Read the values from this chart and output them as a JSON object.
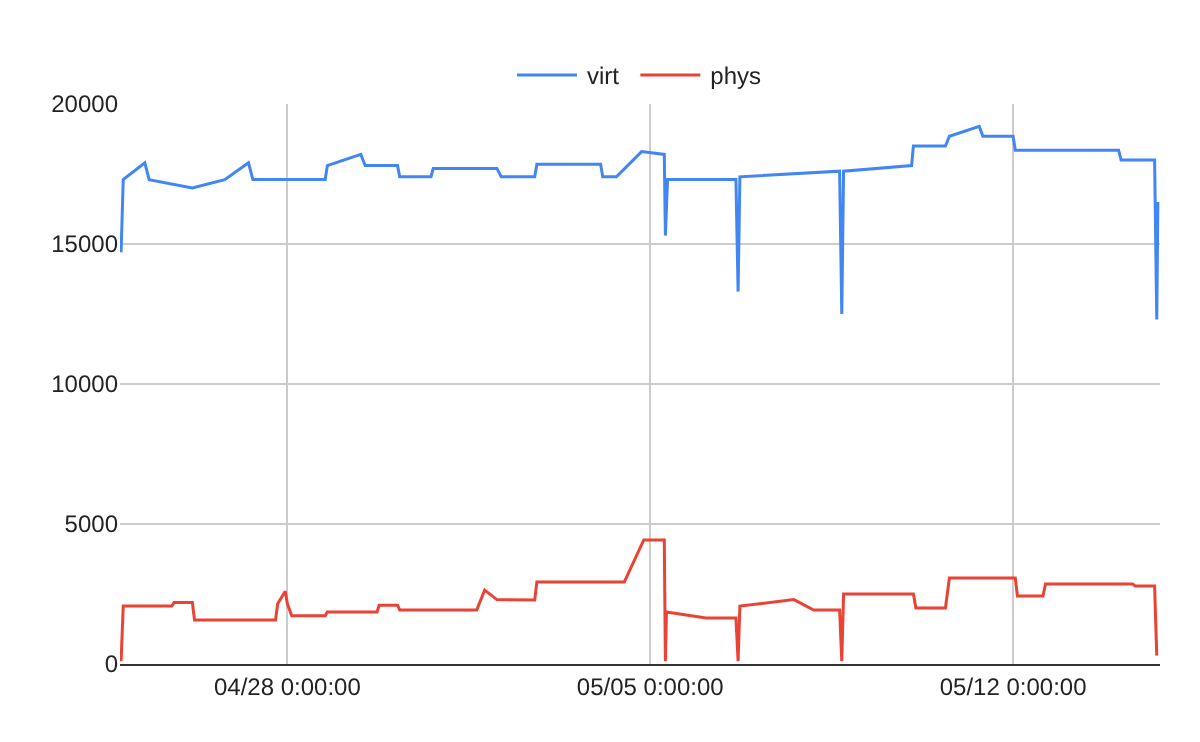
{
  "chart_data": {
    "type": "line",
    "legend": "top",
    "grid": true,
    "xlim": [
      "--04-24T18:30",
      "--05-14T20:00"
    ],
    "xticks": [
      {
        "value": "--04-28T00:00",
        "label": "04/28 0:00:00"
      },
      {
        "value": "--05-05T00:00",
        "label": "05/05 0:00:00"
      },
      {
        "value": "--05-12T00:00",
        "label": "05/12 0:00:00"
      }
    ],
    "ylim": [
      0,
      20000
    ],
    "yticks": [
      0,
      5000,
      10000,
      15000,
      20000
    ],
    "series": [
      {
        "name": "virt",
        "color": "#4285f4",
        "x": [
          "--04-24T19:00",
          "--04-24T20:00",
          "--04-25T06:00",
          "--04-25T08:00",
          "--04-26T04:00",
          "--04-26T19:00",
          "--04-27T06:00",
          "--04-27T08:00",
          "--04-28T02:00",
          "--04-28T17:30",
          "--04-28T18:30",
          "--04-29T10:00",
          "--04-29T12:00",
          "--04-30T03:00",
          "--04-30T04:00",
          "--04-30T18:30",
          "--04-30T19:30",
          "--05-02T01:00",
          "--05-02T03:00",
          "--05-02T18:30",
          "--05-02T19:30",
          "--05-04T01:00",
          "--05-04T02:00",
          "--05-04T08:20",
          "--05-04T20:00",
          "--05-05T06:30",
          "--05-05T07:00",
          "--05-05T08:00",
          "--05-06T15:40",
          "--05-06T16:40",
          "--05-06T17:30",
          "--05-08T15:40",
          "--05-08T16:40",
          "--05-08T17:30",
          "--05-10T01:00",
          "--05-10T01:50",
          "--05-10T16:40",
          "--05-10T18:30",
          "--05-11T08:20",
          "--05-11T10:00",
          "--05-12T00:00",
          "--05-12T01:00",
          "--05-14T00:50",
          "--05-14T02:00",
          "--05-14T17:30",
          "--05-14T18:30",
          "--05-14T19:00"
        ],
        "values": [
          14700,
          17300,
          17900,
          17300,
          17000,
          17300,
          17900,
          17300,
          17300,
          17300,
          17800,
          18200,
          17800,
          17800,
          17400,
          17400,
          17700,
          17700,
          17400,
          17400,
          17850,
          17850,
          17400,
          17400,
          18300,
          18200,
          15300,
          17300,
          17300,
          13300,
          17400,
          17600,
          12500,
          17600,
          17800,
          18500,
          18500,
          18850,
          19200,
          18850,
          18850,
          18350,
          18350,
          18000,
          18000,
          12300,
          16500
        ]
      },
      {
        "name": "phys",
        "color": "#ea4335",
        "x": [
          "--04-24T19:00",
          "--04-24T20:00",
          "--04-25T18:30",
          "--04-25T19:30",
          "--04-26T04:00",
          "--04-26T05:00",
          "--04-27T18:30",
          "--04-27T19:30",
          "--04-27T23:00",
          "--04-28T00:00",
          "--04-28T02:00",
          "--04-28T17:30",
          "--04-28T18:30",
          "--04-29T17:30",
          "--04-29T18:30",
          "--04-30T03:00",
          "--04-30T04:00",
          "--05-01T15:40",
          "--05-01T19:20",
          "--05-02T01:00",
          "--05-02T18:30",
          "--05-02T19:30",
          "--05-04T12:00",
          "--05-04T21:00",
          "--05-05T06:30",
          "--05-05T07:00",
          "--05-05T07:30",
          "--05-06T01:50",
          "--05-06T15:40",
          "--05-06T16:40",
          "--05-06T17:30",
          "--05-07T18:30",
          "--05-08T03:40",
          "--05-08T15:40",
          "--05-08T16:40",
          "--05-08T17:30",
          "--05-10T01:50",
          "--05-10T03:00",
          "--05-10T16:40",
          "--05-10T18:30",
          "--05-12T01:00",
          "--05-12T02:00",
          "--05-12T13:50",
          "--05-12T15:00",
          "--05-14T07:20",
          "--05-14T08:30",
          "--05-14T17:30",
          "--05-14T18:30"
        ],
        "values": [
          100,
          2070,
          2070,
          2200,
          2200,
          1570,
          1570,
          2150,
          2600,
          2150,
          1720,
          1720,
          1860,
          1860,
          2100,
          2100,
          1930,
          1930,
          2640,
          2300,
          2290,
          2930,
          2930,
          4430,
          4430,
          100,
          1860,
          1640,
          1640,
          100,
          2070,
          2300,
          1930,
          1930,
          100,
          2500,
          2500,
          2000,
          2000,
          3070,
          3070,
          2430,
          2430,
          2860,
          2860,
          2790,
          2790,
          300
        ]
      }
    ]
  }
}
